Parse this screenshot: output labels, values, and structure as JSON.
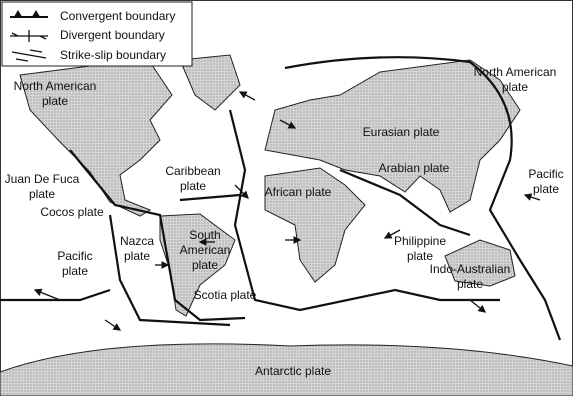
{
  "legend": [
    "Convergent boundary",
    "Divergent boundary",
    "Strike-slip boundary"
  ],
  "plates": [
    {
      "lines": [
        "North American",
        "plate"
      ]
    },
    {
      "lines": [
        "Juan De Fuca",
        "plate"
      ]
    },
    {
      "lines": [
        "Cocos plate"
      ]
    },
    {
      "lines": [
        "Caribbean",
        "plate"
      ]
    },
    {
      "lines": [
        "Pacific",
        "plate"
      ]
    },
    {
      "lines": [
        "Nazca",
        "plate"
      ]
    },
    {
      "lines": [
        "South",
        "American",
        "plate"
      ]
    },
    {
      "lines": [
        "Scotia plate"
      ]
    },
    {
      "lines": [
        "African plate"
      ]
    },
    {
      "lines": [
        "Eurasian plate"
      ]
    },
    {
      "lines": [
        "Arabian plate"
      ]
    },
    {
      "lines": [
        "Philippine",
        "plate"
      ]
    },
    {
      "lines": [
        "Indo-Australian",
        "plate"
      ]
    },
    {
      "lines": [
        "Pacific",
        "plate"
      ]
    },
    {
      "lines": [
        "North American",
        "plate"
      ]
    },
    {
      "lines": [
        "Antarctic plate"
      ]
    }
  ]
}
